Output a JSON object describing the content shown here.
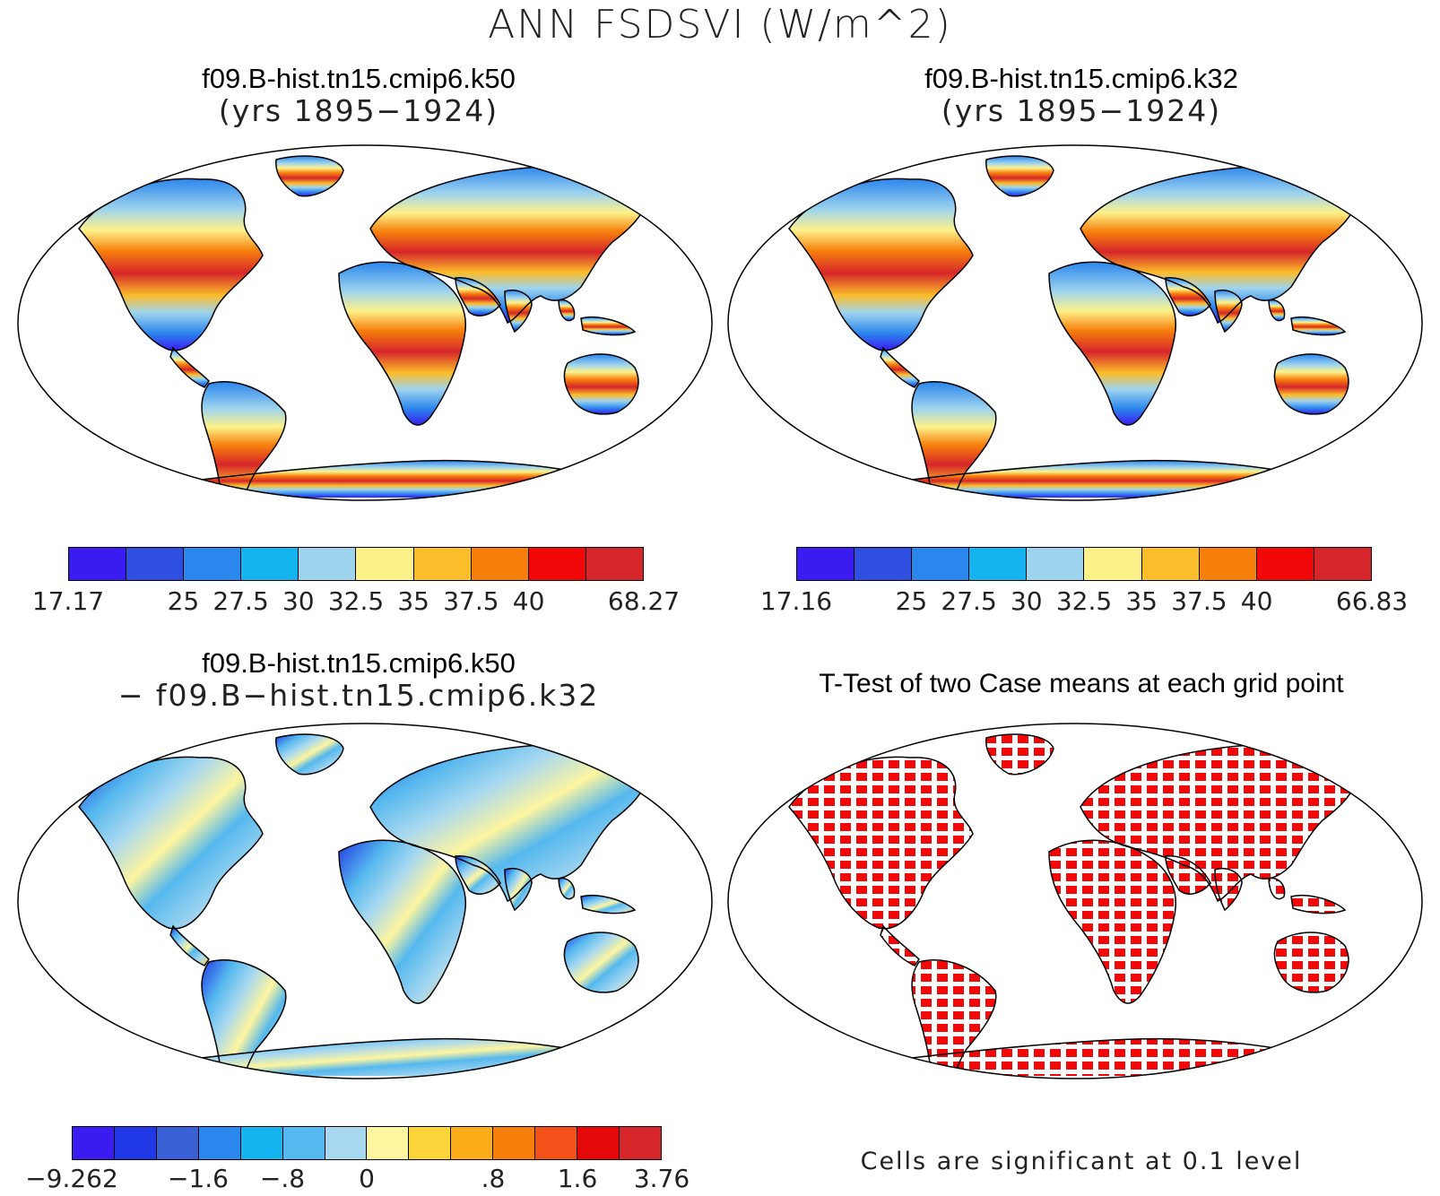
{
  "figure_title": "ANN FSDSVI (W/m^2)",
  "panels": [
    {
      "title_line1": "f09.B-hist.tn15.cmip6.k50",
      "title_line2": "(yrs 1895−1924)",
      "colorbar": {
        "colors": [
          "#3a1cf0",
          "#2e4fe0",
          "#2b86ee",
          "#14b4f0",
          "#9fd4ee",
          "#fdf28a",
          "#fbbd2a",
          "#f7800c",
          "#f20808",
          "#d6262a"
        ],
        "labels": [
          "17.17",
          "",
          "25",
          "27.5",
          "30",
          "32.5",
          "35",
          "37.5",
          "40",
          "",
          "68.27"
        ]
      }
    },
    {
      "title_line1": "f09.B-hist.tn15.cmip6.k32",
      "title_line2": "(yrs 1895−1924)",
      "colorbar": {
        "colors": [
          "#3a1cf0",
          "#2e4fe0",
          "#2b86ee",
          "#14b4f0",
          "#9fd4ee",
          "#fdf28a",
          "#fbbd2a",
          "#f7800c",
          "#f20808",
          "#d6262a"
        ],
        "labels": [
          "17.16",
          "",
          "25",
          "27.5",
          "30",
          "32.5",
          "35",
          "37.5",
          "40",
          "",
          "66.83"
        ]
      }
    },
    {
      "title_line1": "f09.B-hist.tn15.cmip6.k50",
      "title_line2": "− f09.B−hist.tn15.cmip6.k32",
      "colorbar": {
        "colors": [
          "#3a1cf0",
          "#2038e6",
          "#3a60d6",
          "#2b86ee",
          "#14b4f0",
          "#55b8ee",
          "#a8d8f0",
          "#fdf5a0",
          "#fbd43a",
          "#fbad1a",
          "#f7800c",
          "#f4501a",
          "#e40808",
          "#d6262a"
        ],
        "labels": [
          "−9.262",
          "",
          "",
          "−1.6",
          "",
          "−.8",
          "",
          "0",
          "",
          "",
          ".8",
          "",
          "1.6",
          "",
          "3.76"
        ]
      }
    },
    {
      "title": "T-Test of two Case means at each grid point",
      "note": "Cells are significant at 0.1 level"
    }
  ]
}
